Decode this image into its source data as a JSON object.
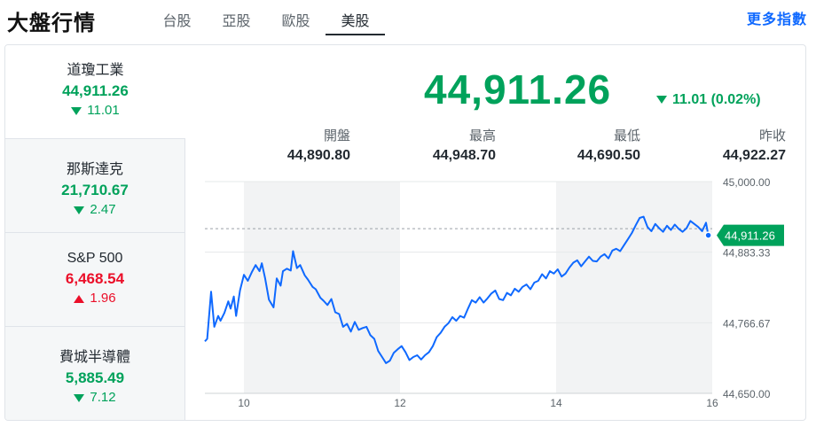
{
  "header": {
    "title": "大盤行情",
    "tabs": [
      {
        "label": "台股",
        "active": false
      },
      {
        "label": "亞股",
        "active": false
      },
      {
        "label": "歐股",
        "active": false
      },
      {
        "label": "美股",
        "active": true
      }
    ],
    "more_link": "更多指數"
  },
  "sidebar": {
    "items": [
      {
        "name": "道瓊工業",
        "price": "44,911.26",
        "change": "11.01",
        "direction": "down"
      },
      {
        "name": "那斯達克",
        "price": "21,710.67",
        "change": "2.47",
        "direction": "down"
      },
      {
        "name": "S&P 500",
        "price": "6,468.54",
        "change": "1.96",
        "direction": "up"
      },
      {
        "name": "費城半導體",
        "price": "5,885.49",
        "change": "7.12",
        "direction": "down"
      }
    ]
  },
  "quote": {
    "price": "44,911.26",
    "change": "11.01 (0.02%)",
    "direction": "down",
    "stats": [
      {
        "label": "開盤",
        "value": "44,890.80"
      },
      {
        "label": "最高",
        "value": "44,948.70"
      },
      {
        "label": "最低",
        "value": "44,690.50"
      },
      {
        "label": "昨收",
        "value": "44,922.27"
      }
    ]
  },
  "colors": {
    "up": "#eb0f29",
    "down": "#00a25b",
    "line": "#0f69ff",
    "accent": "#0f69ff"
  },
  "chart_data": {
    "type": "line",
    "x_ticks": [
      "10",
      "12",
      "14",
      "16"
    ],
    "y_ticks": [
      "45,000.00",
      "44,883.33",
      "44,766.67",
      "44,650.00"
    ],
    "ylim": [
      44650,
      45000
    ],
    "xlim": [
      9.5,
      16
    ],
    "previous_close": 44922.27,
    "current_label": "44,911.26",
    "current_value": 44911.26,
    "shaded_periods": [
      [
        10,
        12
      ],
      [
        14,
        16
      ]
    ],
    "series": [
      {
        "x": [
          9.5,
          9.53,
          9.58,
          9.62,
          9.67,
          9.7,
          9.75,
          9.8,
          9.83,
          9.87,
          9.9,
          9.95,
          10,
          10.05,
          10.1,
          10.15,
          10.2,
          10.23,
          10.27,
          10.32,
          10.38,
          10.42,
          10.47,
          10.5,
          10.55,
          10.6,
          10.63,
          10.68,
          10.72,
          10.78,
          10.82,
          10.88,
          10.92,
          10.98,
          11.02,
          11.07,
          11.12,
          11.17,
          11.22,
          11.27,
          11.32,
          11.37,
          11.42,
          11.47,
          11.52,
          11.57,
          11.62,
          11.67,
          11.72,
          11.77,
          11.82,
          11.87,
          11.92,
          11.97,
          12.02,
          12.07,
          12.12,
          12.17,
          12.22,
          12.27,
          12.32,
          12.37,
          12.42,
          12.47,
          12.52,
          12.57,
          12.62,
          12.67,
          12.72,
          12.77,
          12.82,
          12.87,
          12.92,
          12.97,
          13.02,
          13.07,
          13.12,
          13.17,
          13.22,
          13.27,
          13.32,
          13.37,
          13.42,
          13.47,
          13.52,
          13.57,
          13.62,
          13.67,
          13.72,
          13.77,
          13.82,
          13.87,
          13.92,
          13.97,
          14.02,
          14.07,
          14.12,
          14.17,
          14.22,
          14.27,
          14.32,
          14.37,
          14.42,
          14.47,
          14.52,
          14.57,
          14.62,
          14.67,
          14.72,
          14.77,
          14.82,
          14.87,
          14.92,
          14.97,
          15.02,
          15.07,
          15.12,
          15.17,
          15.22,
          15.27,
          15.32,
          15.37,
          15.42,
          15.47,
          15.52,
          15.57,
          15.62,
          15.67,
          15.72,
          15.77,
          15.82,
          15.87,
          15.92,
          15.95
        ],
        "y": [
          44736,
          44740,
          44818,
          44760,
          44778,
          44770,
          44783,
          44802,
          44790,
          44810,
          44778,
          44820,
          44846,
          44836,
          44850,
          44862,
          44852,
          44865,
          44841,
          44805,
          44792,
          44840,
          44828,
          44852,
          44856,
          44853,
          44885,
          44857,
          44862,
          44845,
          44838,
          44826,
          44822,
          44808,
          44803,
          44796,
          44806,
          44784,
          44781,
          44760,
          44765,
          44752,
          44768,
          44755,
          44758,
          44760,
          44746,
          44740,
          44720,
          44710,
          44700,
          44704,
          44717,
          44723,
          44728,
          44718,
          44705,
          44710,
          44713,
          44706,
          44713,
          44718,
          44728,
          44743,
          44750,
          44760,
          44766,
          44776,
          44770,
          44778,
          44775,
          44790,
          44804,
          44800,
          44809,
          44800,
          44807,
          44815,
          44820,
          44806,
          44804,
          44816,
          44812,
          44823,
          44818,
          44826,
          44830,
          44822,
          44833,
          44836,
          44847,
          44840,
          44852,
          44848,
          44855,
          44843,
          44848,
          44858,
          44866,
          44870,
          44860,
          44868,
          44876,
          44869,
          44868,
          44876,
          44880,
          44873,
          44886,
          44889,
          44885,
          44895,
          44905,
          44915,
          44928,
          44940,
          44942,
          44925,
          44918,
          44930,
          44923,
          44917,
          44927,
          44920,
          44929,
          44922,
          44917,
          44923,
          44935,
          44930,
          44925,
          44918,
          44932,
          44911
        ]
      }
    ]
  }
}
